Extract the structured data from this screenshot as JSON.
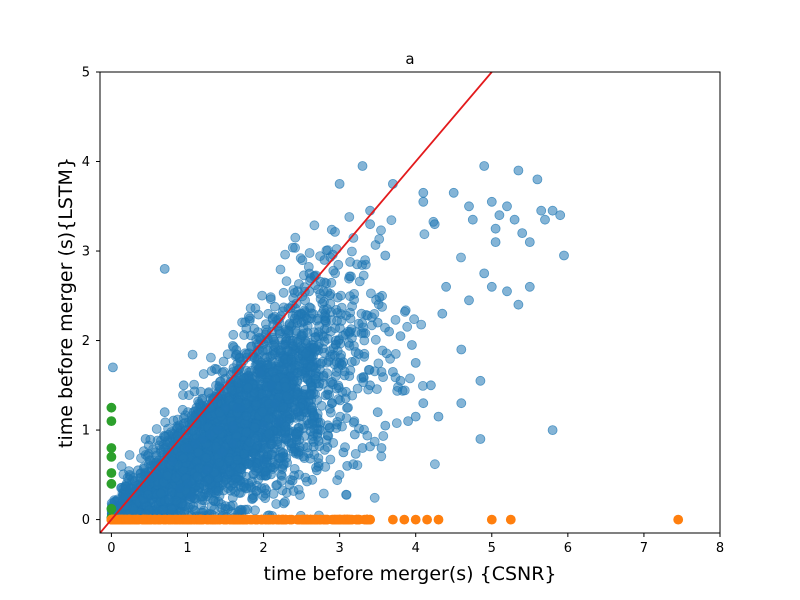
{
  "chart_data": {
    "type": "scatter",
    "title": "a",
    "xlabel": "time before merger(s) {CSNR}",
    "ylabel": "time before merger (s){LSTM}",
    "xlim": [
      -0.15,
      8
    ],
    "ylim": [
      -0.15,
      5
    ],
    "xticks": [
      0,
      1,
      2,
      3,
      4,
      5,
      6,
      7,
      8
    ],
    "yticks": [
      0,
      1,
      2,
      3,
      4,
      5
    ],
    "grid": false,
    "legend": "none",
    "colors": {
      "main": "#1f77b4",
      "lstm_zero": "#ff7f0e",
      "csnr_zero": "#2ca02c",
      "reference_line": "#e31a1c"
    },
    "reference_line": {
      "x": [
        -0.15,
        5.0
      ],
      "y": [
        -0.15,
        5.0
      ]
    },
    "series": [
      {
        "role": "main",
        "x": [
          0.7,
          3.0,
          3.3,
          3.4,
          3.4,
          3.6,
          3.7,
          4.1,
          4.1,
          4.25,
          4.5,
          4.7,
          4.75,
          4.9,
          5.0,
          5.05,
          5.1,
          5.2,
          5.3,
          5.35,
          5.4,
          5.5,
          5.6,
          5.65,
          5.7,
          5.8,
          5.9,
          5.95,
          5.8,
          5.5,
          5.2,
          5.05,
          4.9,
          4.85,
          4.6,
          4.4,
          4.3,
          4.1,
          4.0,
          3.9,
          3.8,
          3.6,
          3.55,
          3.3,
          3.1,
          3.05,
          2.9,
          2.75,
          2.7,
          2.8,
          2.6,
          2.5,
          2.35,
          2.25,
          2.1,
          2.0,
          1.95,
          1.8,
          1.6,
          1.5,
          1.4,
          1.3,
          1.2,
          1.1,
          1.0,
          0.95,
          0.8,
          0.7,
          0.6,
          0.5,
          0.45,
          0.35,
          0.3,
          0.25,
          0.2,
          0.15,
          0.1,
          0.05,
          0.02,
          1.0,
          1.45,
          2.2,
          2.9,
          3.4,
          3.7,
          3.95,
          4.35,
          4.7,
          5.0,
          5.35,
          4.6,
          4.85,
          3.5,
          3.65,
          3.25,
          3.0,
          2.55,
          2.4,
          2.15,
          1.7,
          1.25,
          2.95,
          2.0,
          2.3,
          1.6,
          0.9,
          2.7,
          3.2,
          3.5,
          3.8,
          4.0,
          1.05,
          1.65,
          0.55,
          0.75,
          1.35,
          2.45,
          3.55,
          4.2
        ],
        "y": [
          2.8,
          3.75,
          3.95,
          3.3,
          3.45,
          2.95,
          3.75,
          3.65,
          3.55,
          3.3,
          3.65,
          3.5,
          3.35,
          3.95,
          3.55,
          3.25,
          3.4,
          3.5,
          3.35,
          3.9,
          3.2,
          3.1,
          3.8,
          3.45,
          3.35,
          3.45,
          3.4,
          2.95,
          1.0,
          2.6,
          2.55,
          3.1,
          2.75,
          0.9,
          1.3,
          2.6,
          1.15,
          1.3,
          1.15,
          1.1,
          2.05,
          1.05,
          0.8,
          0.8,
          0.6,
          0.75,
          1.3,
          1.0,
          1.75,
          2.9,
          2.55,
          2.2,
          2.0,
          1.95,
          1.5,
          1.05,
          1.65,
          1.6,
          1.05,
          1.25,
          1.0,
          0.95,
          0.9,
          0.85,
          0.8,
          1.5,
          0.65,
          1.2,
          0.5,
          0.45,
          0.9,
          0.55,
          0.3,
          0.35,
          0.25,
          0.2,
          0.15,
          0.12,
          1.7,
          0.4,
          0.75,
          1.1,
          1.3,
          1.5,
          1.65,
          1.95,
          2.3,
          2.45,
          2.6,
          2.4,
          1.9,
          1.55,
          2.2,
          2.1,
          1.85,
          1.75,
          1.45,
          1.6,
          1.3,
          1.25,
          0.55,
          2.0,
          0.65,
          0.9,
          0.85,
          0.35,
          0.55,
          0.95,
          1.2,
          1.55,
          1.75,
          0.25,
          1.25,
          0.6,
          0.75,
          1.35,
          1.2,
          1.65,
          1.5
        ]
      },
      {
        "role": "lstm_zero",
        "x": [
          0.0,
          0.1,
          0.25,
          0.45,
          0.7,
          1.0,
          1.3,
          1.6,
          1.9,
          2.2,
          2.5,
          2.8,
          3.1,
          3.4,
          3.7,
          3.85,
          4.0,
          4.15,
          4.3,
          5.0,
          5.25,
          7.45
        ],
        "y": [
          0,
          0,
          0,
          0,
          0,
          0,
          0,
          0,
          0,
          0,
          0,
          0,
          0,
          0,
          0,
          0,
          0,
          0,
          0,
          0,
          0,
          0
        ]
      },
      {
        "role": "csnr_zero",
        "x": [
          0,
          0,
          0,
          0,
          0,
          0,
          0,
          0
        ],
        "y": [
          1.25,
          1.1,
          0.8,
          0.7,
          0.52,
          0.4,
          0.12,
          0.02
        ]
      }
    ]
  }
}
